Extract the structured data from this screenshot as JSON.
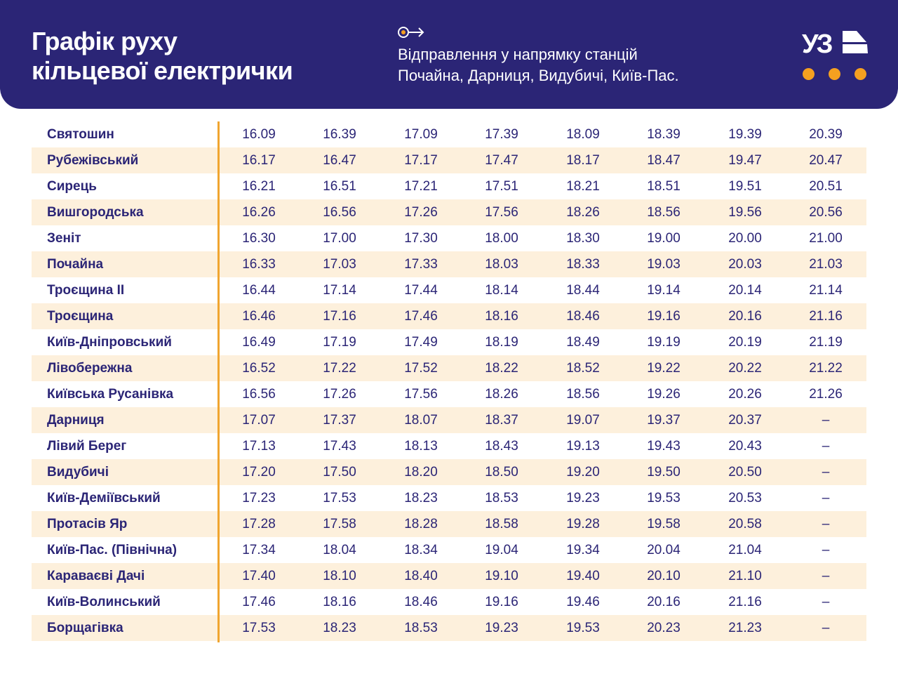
{
  "header": {
    "title_line1": "Графік руху",
    "title_line2": "кільцевої електрички",
    "direction_icon": "departure-arrow-icon",
    "subtitle_line1": "Відправлення у напрямку станцій",
    "subtitle_line2": "Почайна, Дарниця, Видубичі, Київ-Пас.",
    "logo_text": "УЗ"
  },
  "colors": {
    "navy": "#2b2576",
    "orange": "#f5a020",
    "stripe": "#fdf0dc"
  },
  "rows": [
    {
      "station": "Святошин",
      "times": [
        "16.09",
        "16.39",
        "17.09",
        "17.39",
        "18.09",
        "18.39",
        "19.39",
        "20.39"
      ]
    },
    {
      "station": "Рубежівський",
      "times": [
        "16.17",
        "16.47",
        "17.17",
        "17.47",
        "18.17",
        "18.47",
        "19.47",
        "20.47"
      ]
    },
    {
      "station": "Сирець",
      "times": [
        "16.21",
        "16.51",
        "17.21",
        "17.51",
        "18.21",
        "18.51",
        "19.51",
        "20.51"
      ]
    },
    {
      "station": "Вишгородська",
      "times": [
        "16.26",
        "16.56",
        "17.26",
        "17.56",
        "18.26",
        "18.56",
        "19.56",
        "20.56"
      ]
    },
    {
      "station": "Зеніт",
      "times": [
        "16.30",
        "17.00",
        "17.30",
        "18.00",
        "18.30",
        "19.00",
        "20.00",
        "21.00"
      ]
    },
    {
      "station": "Почайна",
      "times": [
        "16.33",
        "17.03",
        "17.33",
        "18.03",
        "18.33",
        "19.03",
        "20.03",
        "21.03"
      ]
    },
    {
      "station": "Троєщина II",
      "times": [
        "16.44",
        "17.14",
        "17.44",
        "18.14",
        "18.44",
        "19.14",
        "20.14",
        "21.14"
      ]
    },
    {
      "station": "Троєщина",
      "times": [
        "16.46",
        "17.16",
        "17.46",
        "18.16",
        "18.46",
        "19.16",
        "20.16",
        "21.16"
      ]
    },
    {
      "station": "Київ-Дніпровський",
      "times": [
        "16.49",
        "17.19",
        "17.49",
        "18.19",
        "18.49",
        "19.19",
        "20.19",
        "21.19"
      ]
    },
    {
      "station": "Лівобережна",
      "times": [
        "16.52",
        "17.22",
        "17.52",
        "18.22",
        "18.52",
        "19.22",
        "20.22",
        "21.22"
      ]
    },
    {
      "station": "Київська Русанівка",
      "times": [
        "16.56",
        "17.26",
        "17.56",
        "18.26",
        "18.56",
        "19.26",
        "20.26",
        "21.26"
      ]
    },
    {
      "station": "Дарниця",
      "times": [
        "17.07",
        "17.37",
        "18.07",
        "18.37",
        "19.07",
        "19.37",
        "20.37",
        "–"
      ]
    },
    {
      "station": "Лівий Берег",
      "times": [
        "17.13",
        "17.43",
        "18.13",
        "18.43",
        "19.13",
        "19.43",
        "20.43",
        "–"
      ]
    },
    {
      "station": "Видубичі",
      "times": [
        "17.20",
        "17.50",
        "18.20",
        "18.50",
        "19.20",
        "19.50",
        "20.50",
        "–"
      ]
    },
    {
      "station": "Київ-Деміївський",
      "times": [
        "17.23",
        "17.53",
        "18.23",
        "18.53",
        "19.23",
        "19.53",
        "20.53",
        "–"
      ]
    },
    {
      "station": "Протасів Яр",
      "times": [
        "17.28",
        "17.58",
        "18.28",
        "18.58",
        "19.28",
        "19.58",
        "20.58",
        "–"
      ]
    },
    {
      "station": "Київ-Пас. (Північна)",
      "times": [
        "17.34",
        "18.04",
        "18.34",
        "19.04",
        "19.34",
        "20.04",
        "21.04",
        "–"
      ]
    },
    {
      "station": "Караваєві Дачі",
      "times": [
        "17.40",
        "18.10",
        "18.40",
        "19.10",
        "19.40",
        "20.10",
        "21.10",
        "–"
      ]
    },
    {
      "station": "Київ-Волинський",
      "times": [
        "17.46",
        "18.16",
        "18.46",
        "19.16",
        "19.46",
        "20.16",
        "21.16",
        "–"
      ]
    },
    {
      "station": "Борщагівка",
      "times": [
        "17.53",
        "18.23",
        "18.53",
        "19.23",
        "19.53",
        "20.23",
        "21.23",
        "–"
      ]
    }
  ]
}
